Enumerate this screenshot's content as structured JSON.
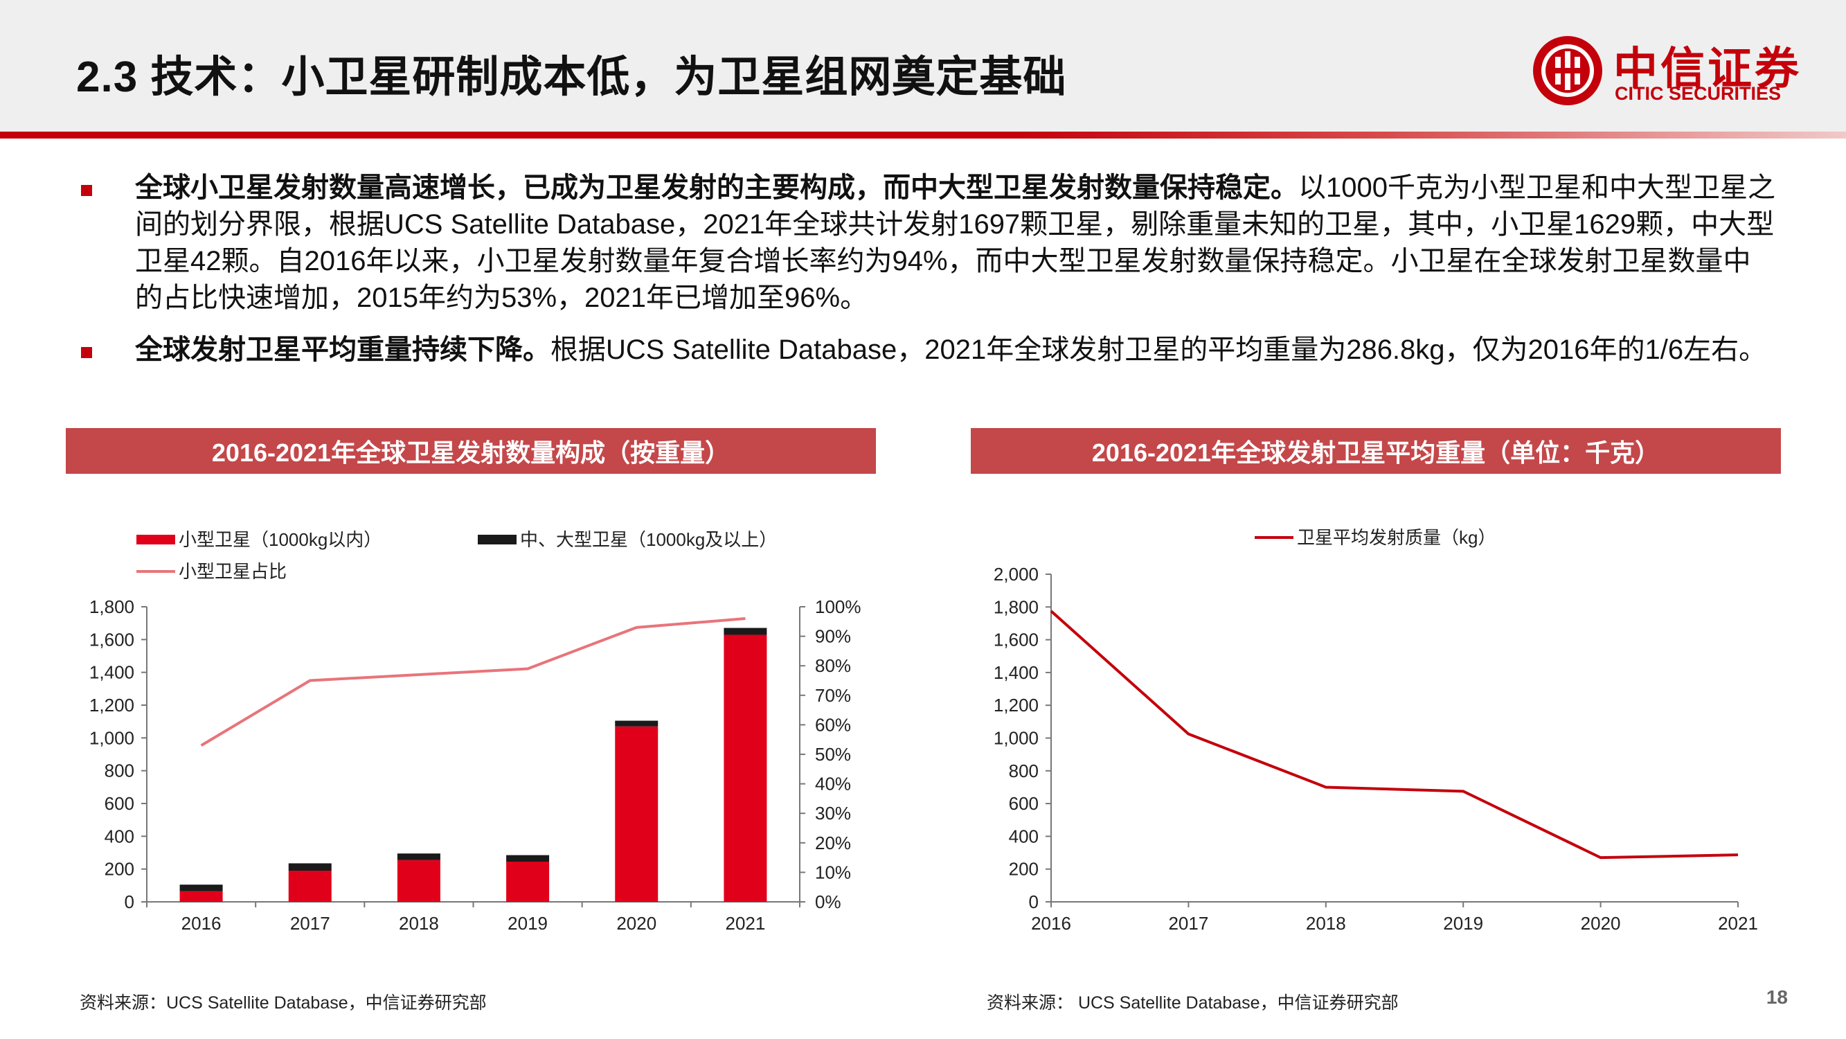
{
  "header": {
    "title": "2.3 技术：小卫星研制成本低，为卫星组网奠定基础",
    "logo_cn": "中信证券",
    "logo_en": "CITIC SECURITIES"
  },
  "bullets": [
    {
      "bold": "全球小卫星发射数量高速增长，已成为卫星发射的主要构成，而中大型卫星发射数量保持稳定。",
      "text": "以1000千克为小型卫星和中大型卫星之间的划分界限，根据UCS Satellite Database，2021年全球共计发射1697颗卫星，剔除重量未知的卫星，其中，小卫星1629颗，中大型卫星42颗。自2016年以来，小卫星发射数量年复合增长率约为94%，而中大型卫星发射数量保持稳定。小卫星在全球发射卫星数量中的占比快速增加，2015年约为53%，2021年已增加至96%。"
    },
    {
      "bold": "全球发射卫星平均重量持续下降。",
      "text": "根据UCS Satellite Database，2021年全球发射卫星的平均重量为286.8kg，仅为2016年的1/6左右。"
    }
  ],
  "colors": {
    "accent": "#c4000b",
    "banner": "#c4474a",
    "share_line": "#e8747a",
    "dark": "#1a1a1a"
  },
  "chart_data": [
    {
      "type": "bar",
      "title": "2016-2021年全球卫星发射数量构成（按重量）",
      "stacked": true,
      "categories": [
        "2016",
        "2017",
        "2018",
        "2019",
        "2020",
        "2021"
      ],
      "series": [
        {
          "name": "小型卫星（1000kg以内）",
          "type": "bar",
          "axis": "left",
          "color": "#e1001a",
          "values": [
            65,
            190,
            255,
            245,
            1070,
            1629
          ]
        },
        {
          "name": "中、大型卫星（1000kg及以上）",
          "type": "bar",
          "axis": "left",
          "color": "#1a1a1a",
          "values": [
            40,
            45,
            40,
            40,
            35,
            42
          ]
        },
        {
          "name": "小型卫星占比",
          "type": "line",
          "axis": "right",
          "color": "#e8747a",
          "values": [
            0.53,
            0.75,
            0.77,
            0.79,
            0.93,
            0.96
          ]
        }
      ],
      "ylim": [
        0,
        1800
      ],
      "yticks": [
        0,
        200,
        400,
        600,
        800,
        1000,
        1200,
        1400,
        1600,
        1800
      ],
      "ytick_labels": [
        "0",
        "200",
        "400",
        "600",
        "800",
        "1,000",
        "1,200",
        "1,400",
        "1,600",
        "1,800"
      ],
      "y2lim": [
        0,
        1.0
      ],
      "y2ticks": [
        0,
        0.1,
        0.2,
        0.3,
        0.4,
        0.5,
        0.6,
        0.7,
        0.8,
        0.9,
        1.0
      ],
      "y2tick_labels": [
        "0%",
        "10%",
        "20%",
        "30%",
        "40%",
        "50%",
        "60%",
        "70%",
        "80%",
        "90%",
        "100%"
      ],
      "legend": "top-left"
    },
    {
      "type": "line",
      "title": "2016-2021年全球发射卫星平均重量（单位：千克）",
      "categories": [
        "2016",
        "2017",
        "2018",
        "2019",
        "2020",
        "2021"
      ],
      "series": [
        {
          "name": "卫星平均发射质量（kg）",
          "color": "#c4000b",
          "values": [
            1775,
            1025,
            700,
            675,
            270,
            286.8
          ]
        }
      ],
      "ylim": [
        0,
        2000
      ],
      "yticks": [
        0,
        200,
        400,
        600,
        800,
        1000,
        1200,
        1400,
        1600,
        1800,
        2000
      ],
      "ytick_labels": [
        "0",
        "200",
        "400",
        "600",
        "800",
        "1,000",
        "1,200",
        "1,400",
        "1,600",
        "1,800",
        "2,000"
      ],
      "legend": "top-center"
    }
  ],
  "sources": {
    "left": "资料来源：UCS Satellite Database，中信证券研究部",
    "right": "资料来源： UCS Satellite Database，中信证券研究部"
  },
  "page_number": "18"
}
